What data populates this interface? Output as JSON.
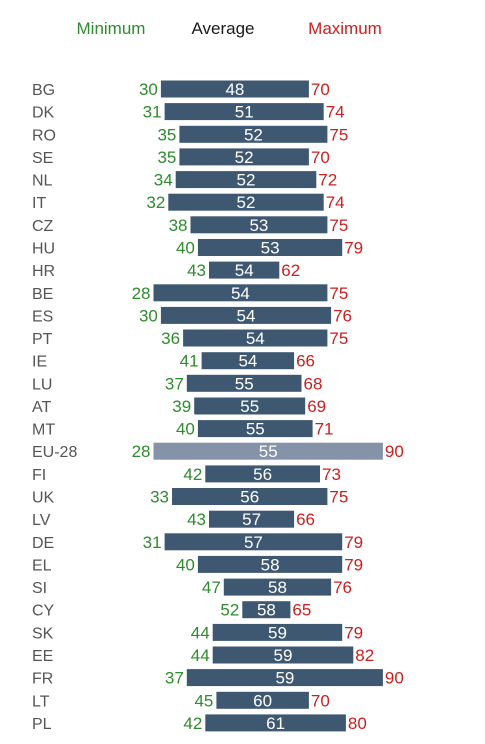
{
  "legend": {
    "minimum": "Minimum",
    "average": "Average",
    "maximum": "Maximum"
  },
  "colors": {
    "minimum": "#2e8b2e",
    "average": "#1a1a1a",
    "maximum": "#cc1f1f",
    "bar": "#3f5872",
    "highlight_bar": "#8593a8",
    "label": "#555555"
  },
  "chart_data": {
    "type": "bar",
    "orientation": "horizontal",
    "categories": [
      "BG",
      "DK",
      "RO",
      "SE",
      "NL",
      "IT",
      "CZ",
      "HU",
      "HR",
      "BE",
      "ES",
      "PT",
      "IE",
      "LU",
      "AT",
      "MT",
      "EU-28",
      "FI",
      "UK",
      "LV",
      "DE",
      "EL",
      "SI",
      "CY",
      "SK",
      "EE",
      "FR",
      "LT",
      "PL"
    ],
    "series": [
      {
        "name": "Minimum",
        "values": [
          30,
          31,
          35,
          35,
          34,
          32,
          38,
          40,
          43,
          28,
          30,
          36,
          41,
          37,
          39,
          40,
          28,
          42,
          33,
          43,
          31,
          40,
          47,
          52,
          44,
          44,
          37,
          45,
          42
        ]
      },
      {
        "name": "Average",
        "values": [
          48,
          51,
          52,
          52,
          52,
          52,
          53,
          53,
          54,
          54,
          54,
          54,
          54,
          55,
          55,
          55,
          55,
          56,
          56,
          57,
          57,
          58,
          58,
          58,
          59,
          59,
          59,
          60,
          61
        ]
      },
      {
        "name": "Maximum",
        "values": [
          70,
          74,
          75,
          70,
          72,
          74,
          75,
          79,
          62,
          75,
          76,
          75,
          66,
          68,
          69,
          71,
          90,
          73,
          75,
          66,
          79,
          79,
          76,
          65,
          79,
          82,
          90,
          70,
          80
        ]
      }
    ],
    "highlight": "EU-28",
    "legend_position": "top"
  }
}
